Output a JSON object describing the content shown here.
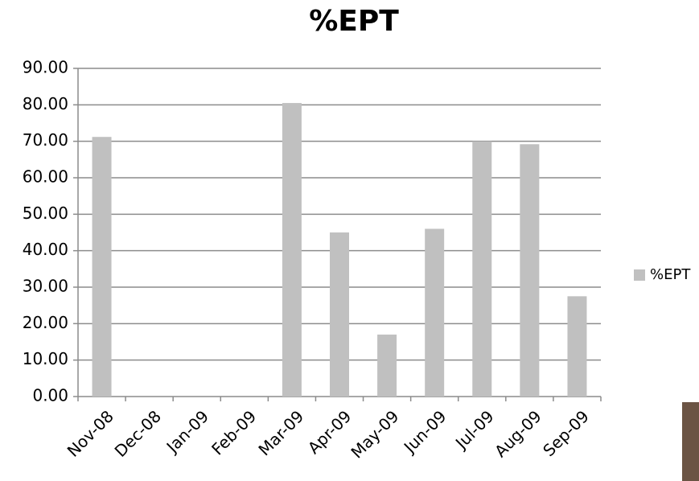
{
  "chart_data": {
    "type": "bar",
    "title": "%EPT",
    "categories": [
      "Nov-08",
      "Dec-08",
      "Jan-09",
      "Feb-09",
      "Mar-09",
      "Apr-09",
      "May-09",
      "Jun-09",
      "Jul-09",
      "Aug-09",
      "Sep-09"
    ],
    "series": [
      {
        "name": "%EPT",
        "color": "#c0c0c0",
        "values": [
          71.2,
          null,
          null,
          null,
          80.5,
          45,
          17,
          46,
          70,
          69.2,
          27.5
        ]
      }
    ],
    "ylim": [
      0,
      90
    ],
    "yticks": [
      {
        "value": 0,
        "label": "0.00"
      },
      {
        "value": 10,
        "label": "10.00"
      },
      {
        "value": 20,
        "label": "20.00"
      },
      {
        "value": 30,
        "label": "30.00"
      },
      {
        "value": 40,
        "label": "40.00"
      },
      {
        "value": 50,
        "label": "50.00"
      },
      {
        "value": 60,
        "label": "60.00"
      },
      {
        "value": 70,
        "label": "70.00"
      },
      {
        "value": 80,
        "label": "80.00"
      },
      {
        "value": 90,
        "label": "90.00"
      }
    ],
    "grid": true,
    "legend": "right"
  }
}
